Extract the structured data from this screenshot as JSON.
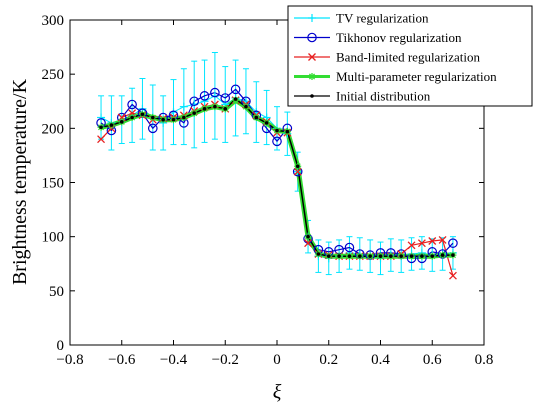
{
  "chart_data": {
    "type": "line",
    "title": "",
    "xlabel": "ξ",
    "ylabel": "Brightness temperature/K",
    "xlim": [
      -0.8,
      0.8
    ],
    "ylim": [
      0,
      300
    ],
    "xticks": [
      -0.8,
      -0.6,
      -0.4,
      -0.2,
      0,
      0.2,
      0.4,
      0.6,
      0.8
    ],
    "xtick_labels": [
      "−0.8",
      "−0.6",
      "−0.4",
      "−0.2",
      "0",
      "0.2",
      "0.4",
      "0.6",
      "0.8"
    ],
    "yticks": [
      0,
      50,
      100,
      150,
      200,
      250,
      300
    ],
    "ytick_labels": [
      "0",
      "50",
      "100",
      "150",
      "200",
      "250",
      "300"
    ],
    "grid": false,
    "legend_position": "top-right",
    "series": [
      {
        "name": "TV regularization",
        "color": "#00e5ff",
        "marker": "plus-errorbar",
        "x": [
          -0.68,
          -0.64,
          -0.6,
          -0.56,
          -0.52,
          -0.48,
          -0.44,
          -0.4,
          -0.36,
          -0.32,
          -0.28,
          -0.24,
          -0.2,
          -0.16,
          -0.12,
          -0.08,
          -0.04,
          0.0,
          0.04,
          0.08,
          0.12,
          0.16,
          0.2,
          0.24,
          0.28,
          0.32,
          0.36,
          0.4,
          0.44,
          0.48,
          0.52,
          0.56,
          0.6,
          0.64,
          0.68
        ],
        "y": [
          210,
          205,
          208,
          212,
          218,
          210,
          205,
          215,
          220,
          222,
          225,
          230,
          222,
          228,
          225,
          215,
          210,
          200,
          195,
          160,
          100,
          82,
          80,
          82,
          85,
          84,
          82,
          80,
          83,
          82,
          84,
          85,
          83,
          84,
          85
        ],
        "err": [
          20,
          25,
          22,
          25,
          28,
          30,
          25,
          30,
          35,
          40,
          38,
          40,
          35,
          35,
          30,
          28,
          25,
          20,
          20,
          18,
          15,
          15,
          15,
          15,
          15,
          15,
          15,
          15,
          15,
          15,
          15,
          15,
          15,
          15,
          15
        ]
      },
      {
        "name": "Tikhonov regularization",
        "color": "#0000cc",
        "marker": "circle",
        "x": [
          -0.68,
          -0.64,
          -0.6,
          -0.56,
          -0.52,
          -0.48,
          -0.44,
          -0.4,
          -0.36,
          -0.32,
          -0.28,
          -0.24,
          -0.2,
          -0.16,
          -0.12,
          -0.08,
          -0.04,
          0.0,
          0.04,
          0.08,
          0.12,
          0.16,
          0.2,
          0.24,
          0.28,
          0.32,
          0.36,
          0.4,
          0.44,
          0.48,
          0.52,
          0.56,
          0.6,
          0.64,
          0.68
        ],
        "y": [
          205,
          198,
          210,
          222,
          214,
          200,
          210,
          212,
          205,
          225,
          230,
          233,
          228,
          236,
          225,
          212,
          200,
          188,
          200,
          160,
          98,
          88,
          86,
          88,
          90,
          84,
          83,
          85,
          85,
          84,
          80,
          80,
          86,
          84,
          94
        ]
      },
      {
        "name": "Band-limited regularization",
        "color": "#e82020",
        "marker": "x",
        "x": [
          -0.68,
          -0.64,
          -0.6,
          -0.56,
          -0.52,
          -0.48,
          -0.44,
          -0.4,
          -0.36,
          -0.32,
          -0.28,
          -0.24,
          -0.2,
          -0.16,
          -0.12,
          -0.08,
          -0.04,
          0.0,
          0.04,
          0.08,
          0.12,
          0.16,
          0.2,
          0.24,
          0.28,
          0.32,
          0.36,
          0.4,
          0.44,
          0.48,
          0.52,
          0.56,
          0.6,
          0.64,
          0.68
        ],
        "y": [
          190,
          200,
          210,
          214,
          212,
          208,
          209,
          210,
          212,
          216,
          220,
          222,
          218,
          226,
          222,
          212,
          206,
          196,
          196,
          160,
          94,
          84,
          83,
          82,
          82,
          82,
          82,
          82,
          82,
          84,
          92,
          94,
          96,
          97,
          64
        ]
      },
      {
        "name": "Multi-parameter regularization",
        "color": "#33dd33",
        "marker": "asterisk",
        "x": [
          -0.68,
          -0.64,
          -0.6,
          -0.56,
          -0.52,
          -0.48,
          -0.44,
          -0.4,
          -0.36,
          -0.32,
          -0.28,
          -0.24,
          -0.2,
          -0.16,
          -0.12,
          -0.08,
          -0.04,
          0.0,
          0.04,
          0.08,
          0.12,
          0.16,
          0.2,
          0.24,
          0.28,
          0.32,
          0.36,
          0.4,
          0.44,
          0.48,
          0.52,
          0.56,
          0.6,
          0.64,
          0.68
        ],
        "y": [
          201,
          203,
          206,
          210,
          213,
          210,
          208,
          208,
          210,
          214,
          218,
          220,
          218,
          226,
          220,
          210,
          205,
          198,
          197,
          165,
          100,
          84,
          82,
          82,
          82,
          82,
          82,
          82,
          82,
          82,
          82,
          82,
          82,
          83,
          83
        ]
      },
      {
        "name": "Initial distribution",
        "color": "#000000",
        "marker": "dot",
        "x": [
          -0.68,
          -0.64,
          -0.6,
          -0.56,
          -0.52,
          -0.48,
          -0.44,
          -0.4,
          -0.36,
          -0.32,
          -0.28,
          -0.24,
          -0.2,
          -0.16,
          -0.12,
          -0.08,
          -0.04,
          0.0,
          0.04,
          0.08,
          0.12,
          0.16,
          0.2,
          0.24,
          0.28,
          0.32,
          0.36,
          0.4,
          0.44,
          0.48,
          0.52,
          0.56,
          0.6,
          0.64,
          0.68
        ],
        "y": [
          201,
          203,
          206,
          210,
          213,
          210,
          208,
          208,
          210,
          214,
          218,
          220,
          218,
          227,
          220,
          210,
          205,
          198,
          197,
          165,
          100,
          84,
          82,
          82,
          82,
          82,
          82,
          82,
          82,
          82,
          82,
          82,
          82,
          83,
          83
        ]
      }
    ]
  }
}
